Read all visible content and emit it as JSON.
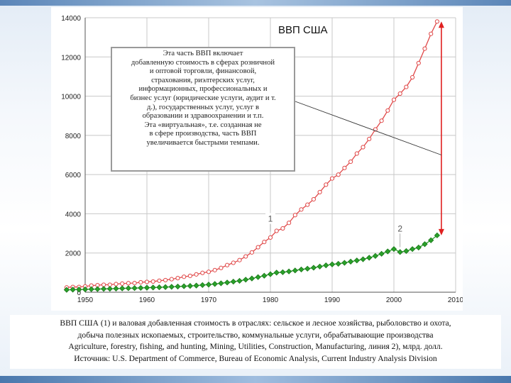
{
  "chart_data": {
    "type": "line",
    "title": "ВВП США",
    "xlabel": "",
    "ylabel": "",
    "xlim": [
      1950,
      2010
    ],
    "ylim": [
      0,
      14000
    ],
    "x_ticks": [
      "1950",
      "1960",
      "1970",
      "1980",
      "1990",
      "2000",
      "2010"
    ],
    "y_ticks": [
      "0",
      "2000",
      "4000",
      "6000",
      "8000",
      "10000",
      "12000",
      "14000"
    ],
    "grid": true,
    "series": [
      {
        "name": "1",
        "color": "#e04848",
        "marker": "circle-open",
        "x": [
          1947,
          1948,
          1949,
          1950,
          1951,
          1952,
          1953,
          1954,
          1955,
          1956,
          1957,
          1958,
          1959,
          1960,
          1961,
          1962,
          1963,
          1964,
          1965,
          1966,
          1967,
          1968,
          1969,
          1970,
          1971,
          1972,
          1973,
          1974,
          1975,
          1976,
          1977,
          1978,
          1979,
          1980,
          1981,
          1982,
          1983,
          1984,
          1985,
          1986,
          1987,
          1988,
          1989,
          1990,
          1991,
          1992,
          1993,
          1994,
          1995,
          1996,
          1997,
          1998,
          1999,
          2000,
          2001,
          2002,
          2003,
          2004,
          2005,
          2006,
          2007
        ],
        "values": [
          244,
          269,
          267,
          294,
          339,
          358,
          380,
          381,
          415,
          438,
          461,
          467,
          507,
          527,
          545,
          586,
          618,
          664,
          719,
          788,
          833,
          910,
          985,
          1039,
          1127,
          1238,
          1383,
          1500,
          1638,
          1825,
          2031,
          2295,
          2563,
          2789,
          3128,
          3255,
          3537,
          3933,
          4220,
          4463,
          4740,
          5104,
          5484,
          5803,
          5996,
          6338,
          6657,
          7072,
          7398,
          7817,
          8304,
          8747,
          9268,
          9817,
          10128,
          10470,
          10961,
          11686,
          12422,
          13178,
          13808
        ]
      },
      {
        "name": "2",
        "color": "#2aa02a",
        "marker": "diamond",
        "x": [
          1947,
          1948,
          1949,
          1950,
          1951,
          1952,
          1953,
          1954,
          1955,
          1956,
          1957,
          1958,
          1959,
          1960,
          1961,
          1962,
          1963,
          1964,
          1965,
          1966,
          1967,
          1968,
          1969,
          1970,
          1971,
          1972,
          1973,
          1974,
          1975,
          1976,
          1977,
          1978,
          1979,
          1980,
          1981,
          1982,
          1983,
          1984,
          1985,
          1986,
          1987,
          1988,
          1989,
          1990,
          1991,
          1992,
          1993,
          1994,
          1995,
          1996,
          1997,
          1998,
          1999,
          2000,
          2001,
          2002,
          2003,
          2004,
          2005,
          2006,
          2007
        ],
        "values": [
          120,
          130,
          135,
          145,
          155,
          160,
          170,
          175,
          185,
          195,
          205,
          210,
          220,
          230,
          240,
          250,
          262,
          275,
          290,
          305,
          320,
          340,
          365,
          390,
          420,
          455,
          495,
          540,
          580,
          640,
          700,
          770,
          840,
          920,
          1000,
          1020,
          1060,
          1110,
          1160,
          1200,
          1250,
          1310,
          1370,
          1420,
          1450,
          1500,
          1560,
          1620,
          1680,
          1760,
          1850,
          1960,
          2080,
          2200,
          2050,
          2100,
          2200,
          2280,
          2450,
          2650,
          2900
        ]
      }
    ],
    "annotations": {
      "note_lines": [
        "Эта часть ВВП включает",
        "добавленную стоимость в сферах розничной",
        "и оптовой торговли, финансовой,",
        "страхования, риэлтерских услуг,",
        "информационных, профессиональных и",
        "бизнес услуг (юридические услуги, аудит и т.",
        "д.), государственных услуг, услуг в",
        "образовании и здравоохранении и т.п.",
        "Эта «виртуальная», т.е. созданная не",
        "в сфере производства, часть ВВП",
        "увеличивается быстрыми темпами."
      ],
      "label_1": "1",
      "label_2": "2"
    }
  },
  "caption": {
    "lines": [
      "ВВП США (1) и валовая добавленная стоимость в отраслях: сельское и лесное хозяйства, рыболовство и охота,",
      "добыча полезных ископаемых, строительство, коммунальные услуги, обрабатывающие производства",
      "Agriculture, forestry, fishing, and hunting, Mining, Utilities, Construction, Manufacturing, линия 2), млрд. долл.",
      "Источник: U.S. Department of Commerce, Bureau of Economic Analysis, Current Industry Analysis Division"
    ]
  },
  "colors": {
    "grid": "#c8c8c8",
    "axis": "#555555",
    "arrow": "#e02020"
  }
}
